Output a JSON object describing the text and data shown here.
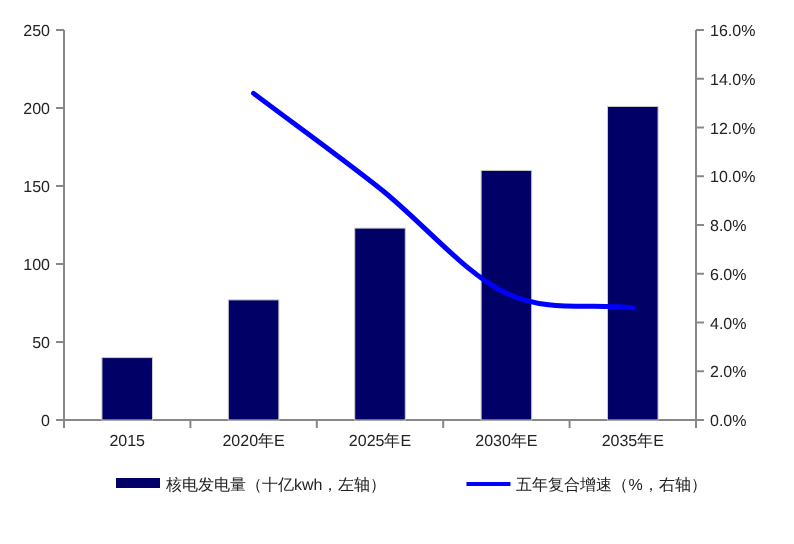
{
  "chart_data": {
    "type": "bar",
    "categories": [
      "2015",
      "2020年E",
      "2025年E",
      "2030年E",
      "2035年E"
    ],
    "series": [
      {
        "name": "核电发电量（十亿kwh，左轴）",
        "color": "#000066",
        "values": [
          40,
          77,
          123,
          160,
          201
        ]
      },
      {
        "name": "五年复合增速（%，右轴）",
        "type": "line",
        "axis": "y2",
        "color": "#0000ff",
        "values": [
          null,
          13.4,
          9.5,
          5.2,
          4.6
        ]
      }
    ],
    "ylim": [
      0,
      250
    ],
    "yticks": [
      0,
      50,
      100,
      150,
      200,
      250
    ],
    "y2lim": [
      0,
      16
    ],
    "y2ticks": [
      {
        "value": 0,
        "label": "0.0%"
      },
      {
        "value": 2,
        "label": "2.0%"
      },
      {
        "value": 4,
        "label": "4.0%"
      },
      {
        "value": 6,
        "label": "6.0%"
      },
      {
        "value": 8,
        "label": "8.0%"
      },
      {
        "value": 10,
        "label": "10.0%"
      },
      {
        "value": 12,
        "label": "12.0%"
      },
      {
        "value": 14,
        "label": "14.0%"
      },
      {
        "value": 16,
        "label": "16.0%"
      }
    ],
    "legend": "bottom"
  }
}
